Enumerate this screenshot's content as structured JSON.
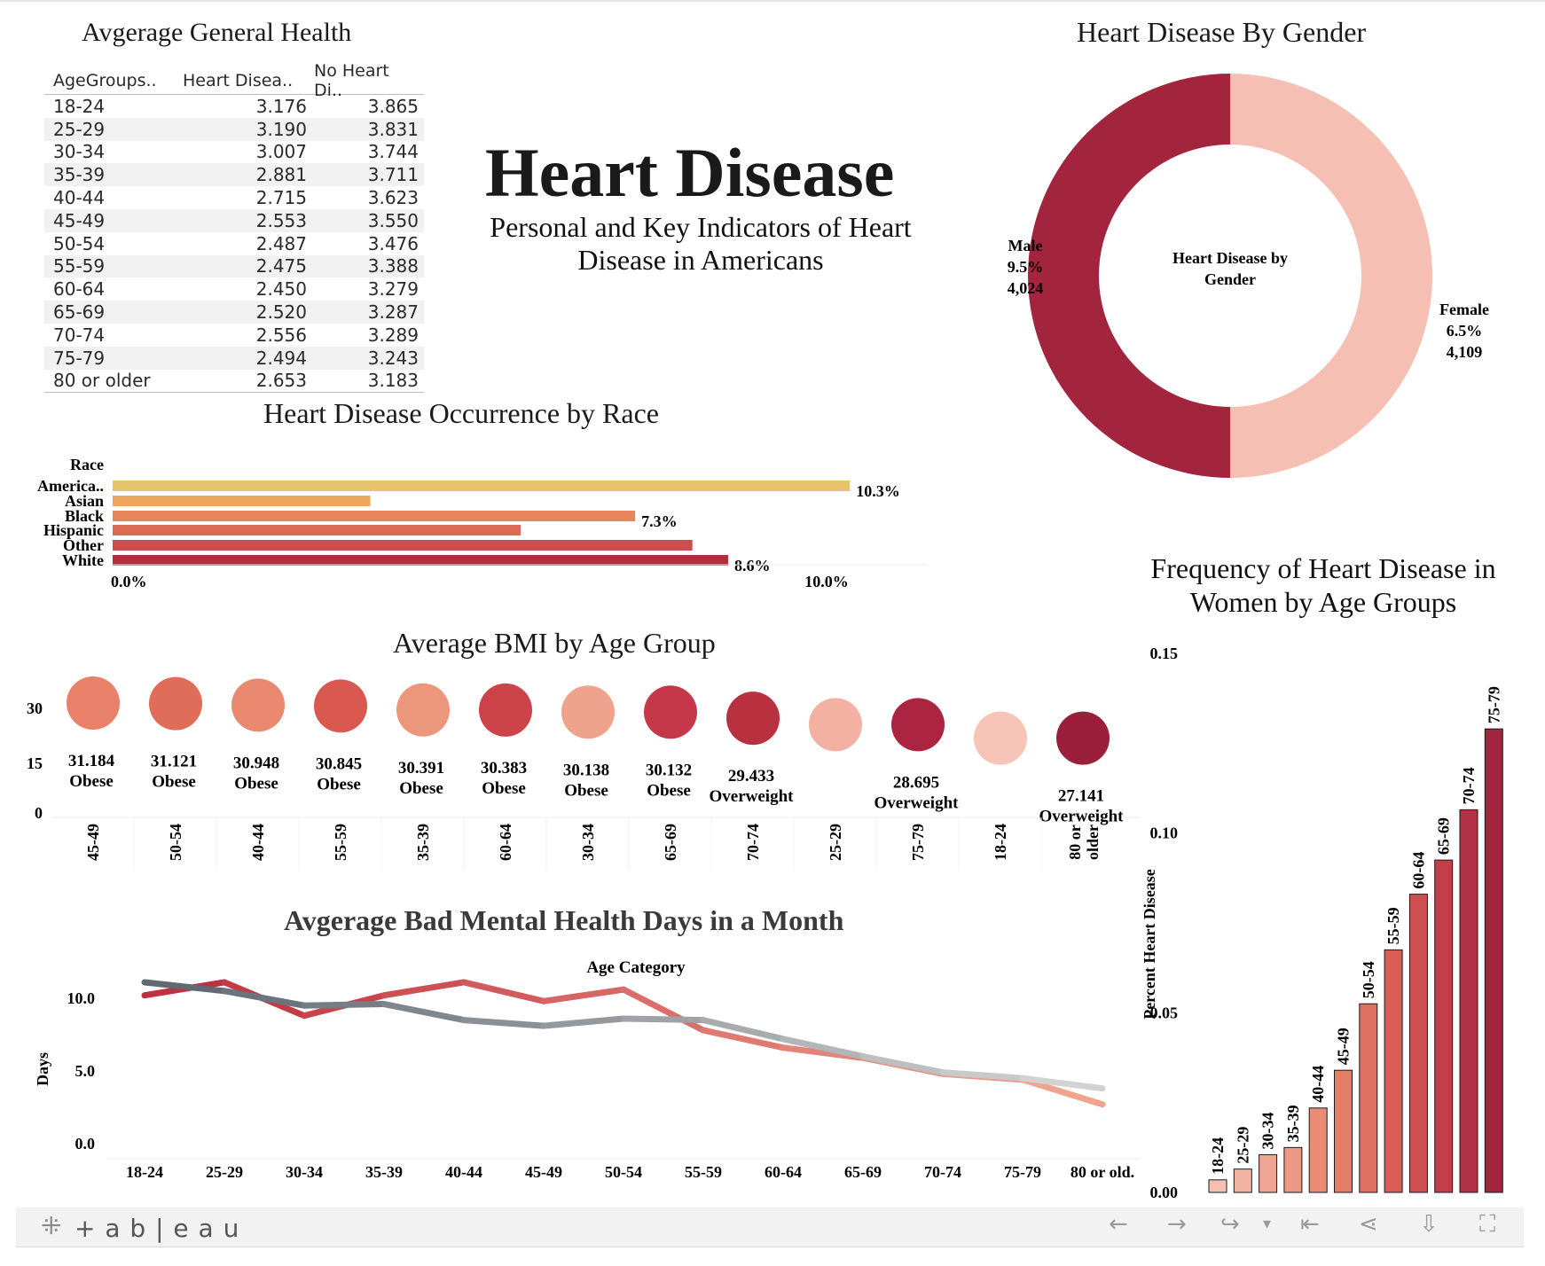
{
  "header": {
    "title": "Heart Disease",
    "subtitle_line1": "Personal and Key Indicators of Heart",
    "subtitle_line2": "Disease in Americans"
  },
  "health_table": {
    "title": "Avgerage General Health",
    "columns": [
      "AgeGroups..",
      "Heart Disea..",
      "No Heart Di.."
    ],
    "rows": [
      [
        "18-24",
        "3.176",
        "3.865"
      ],
      [
        "25-29",
        "3.190",
        "3.831"
      ],
      [
        "30-34",
        "3.007",
        "3.744"
      ],
      [
        "35-39",
        "2.881",
        "3.711"
      ],
      [
        "40-44",
        "2.715",
        "3.623"
      ],
      [
        "45-49",
        "2.553",
        "3.550"
      ],
      [
        "50-54",
        "2.487",
        "3.476"
      ],
      [
        "55-59",
        "2.475",
        "3.388"
      ],
      [
        "60-64",
        "2.450",
        "3.279"
      ],
      [
        "65-69",
        "2.520",
        "3.287"
      ],
      [
        "70-74",
        "2.556",
        "3.289"
      ],
      [
        "75-79",
        "2.494",
        "3.243"
      ],
      [
        "80 or older",
        "2.653",
        "3.183"
      ]
    ]
  },
  "chart_data": [
    {
      "id": "race",
      "type": "bar",
      "orientation": "horizontal",
      "title": "Heart Disease Occurrence by Race",
      "category_header": "Race",
      "categories": [
        "America..",
        "Asian",
        "Black",
        "Hispanic",
        "Other",
        "White"
      ],
      "values": [
        10.3,
        3.6,
        7.3,
        5.7,
        8.1,
        8.6
      ],
      "data_labels": [
        "10.3%",
        "",
        "7.3%",
        "",
        "",
        "8.6%"
      ],
      "colors": [
        "#e8c46c",
        "#eba55d",
        "#e8855a",
        "#db6b55",
        "#cb4e4e",
        "#b12d3f"
      ],
      "xlim": [
        0,
        11.4
      ],
      "xticks": [
        0,
        10
      ],
      "xtick_labels": [
        "0.0%",
        "10.0%"
      ]
    },
    {
      "id": "gender",
      "type": "pie",
      "title": "Heart Disease By Gender",
      "center_label_line1": "Heart Disease by",
      "center_label_line2": "Gender",
      "slices": [
        {
          "name": "Male",
          "percent": "9.5%",
          "count": "4,024",
          "share": 0.5,
          "color": "#a3243d"
        },
        {
          "name": "Female",
          "percent": "6.5%",
          "count": "4,109",
          "share": 0.5,
          "color": "#f5c0b3"
        }
      ]
    },
    {
      "id": "bmi",
      "type": "scatter",
      "title": "Average BMI by Age Group",
      "yticks": [
        "30",
        "15",
        "0"
      ],
      "categories": [
        "45-49",
        "50-54",
        "40-44",
        "55-59",
        "35-39",
        "60-64",
        "30-34",
        "65-69",
        "70-74",
        "25-29",
        "75-79",
        "18-24",
        "80 or older"
      ],
      "values": [
        31.184,
        31.121,
        30.948,
        30.845,
        30.391,
        30.383,
        30.138,
        30.132,
        29.433,
        28.695,
        28.695,
        27.141,
        27.141
      ],
      "value_labels": [
        "31.184",
        "31.121",
        "30.948",
        "30.845",
        "30.391",
        "30.383",
        "30.138",
        "30.132",
        "29.433",
        "",
        "28.695",
        "",
        "27.141"
      ],
      "class_labels": [
        "Obese",
        "Obese",
        "Obese",
        "Obese",
        "Obese",
        "Obese",
        "Obese",
        "Obese",
        "Overweight",
        "",
        "Overweight",
        "",
        "Overweight"
      ],
      "colors": [
        "#e8806a",
        "#e06c5a",
        "#e98970",
        "#d9584f",
        "#ec977c",
        "#cc4449",
        "#efa28c",
        "#c4384a",
        "#b9303f",
        "#f2b1a3",
        "#ab2540",
        "#f7c5b7",
        "#9b1f3a"
      ]
    },
    {
      "id": "mental",
      "type": "line",
      "title": "Avgerage Bad Mental Health Days in a Month",
      "xlabel": "Age Category",
      "ylabel": "Days",
      "x": [
        "18-24",
        "25-29",
        "30-34",
        "35-39",
        "40-44",
        "45-49",
        "50-54",
        "55-59",
        "60-64",
        "65-69",
        "70-74",
        "75-79",
        "80 or old."
      ],
      "ylim": [
        -1.0,
        13.0
      ],
      "yticks": [
        0,
        5,
        10
      ],
      "ytick_labels": [
        "0.0",
        "5.0",
        "10.0"
      ],
      "series": [
        {
          "values": [
            10.2,
            11.1,
            8.8,
            10.2,
            11.1,
            9.8,
            10.6,
            7.8,
            6.6,
            5.9,
            4.8,
            4.4,
            2.7
          ],
          "start_color": "#c0303f",
          "end_color": "#f0a48e"
        },
        {
          "values": [
            11.1,
            10.5,
            9.5,
            9.6,
            8.5,
            8.1,
            8.6,
            8.5,
            7.2,
            6.0,
            4.9,
            4.5,
            3.8
          ],
          "start_color": "#616a73",
          "end_color": "#d2d2d2"
        }
      ]
    },
    {
      "id": "women",
      "type": "bar",
      "title_line1": "Frequency of Heart Disease in",
      "title_line2": "Women by Age Groups",
      "ylabel": "Percent Heart Disease",
      "categories": [
        "18-24",
        "25-29",
        "30-34",
        "35-39",
        "40-44",
        "45-49",
        "50-54",
        "55-59",
        "60-64",
        "65-69",
        "70-74",
        "75-79"
      ],
      "values": [
        0.0035,
        0.0065,
        0.0105,
        0.0125,
        0.0235,
        0.034,
        0.0525,
        0.0675,
        0.083,
        0.0925,
        0.1065,
        0.129
      ],
      "colors": [
        "#f5c0b3",
        "#f2b3a3",
        "#efa593",
        "#ec9883",
        "#e98b75",
        "#e57e67",
        "#e07060",
        "#d85f56",
        "#cd4f4f",
        "#c23f49",
        "#b23043",
        "#a3243d"
      ],
      "ylim": [
        0,
        0.15
      ],
      "yticks": [
        0,
        0.05,
        0.1,
        0.15
      ],
      "ytick_labels": [
        "0.00",
        "0.05",
        "0.10",
        "0.15"
      ]
    }
  ],
  "footer": {
    "logo_text": "+ a b | e a u",
    "logo_icon": "tableau-cross-icon",
    "toolbar_icons": [
      "undo-arrow-icon",
      "redo-arrow-icon",
      "revert-icon",
      "dropdown-caret-icon",
      "reset-to-start-icon",
      "share-icon",
      "download-icon",
      "fullscreen-icon"
    ]
  }
}
